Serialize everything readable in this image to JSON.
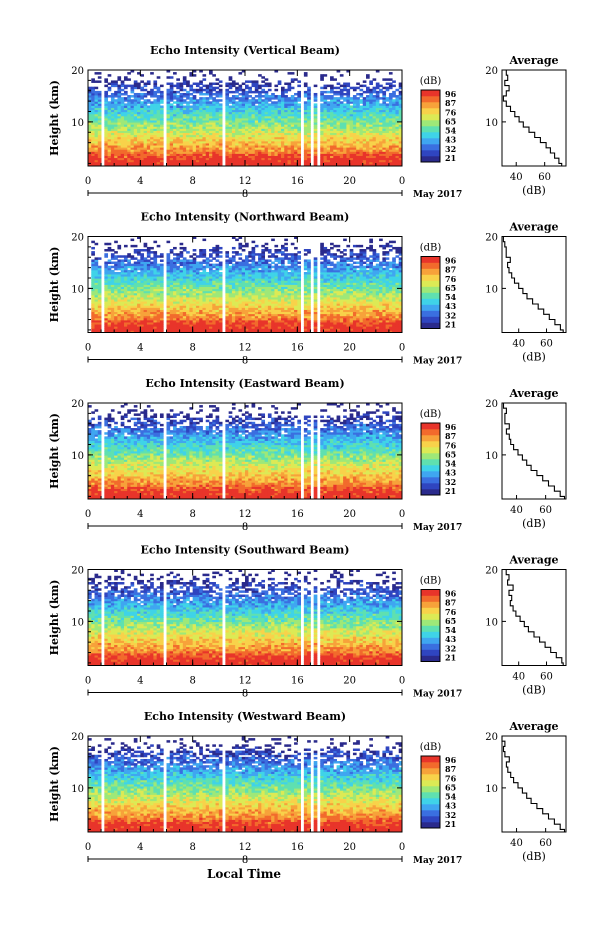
{
  "page": {
    "xaxis_title": "Local Time"
  },
  "colorbar": {
    "unit": "(dB)",
    "ticks": [
      "96",
      "87",
      "76",
      "65",
      "54",
      "43",
      "32",
      "21"
    ],
    "colors": [
      "#2a2a8c",
      "#2f45c0",
      "#3a6fe0",
      "#3fa6f0",
      "#3fd3e8",
      "#5fe0b0",
      "#9ee878",
      "#dcea55",
      "#f8d24a",
      "#f7a23a",
      "#f26a2c",
      "#e8342a"
    ]
  },
  "chart_data": [
    {
      "type": "heatmap",
      "title": "Echo Intensity (Vertical Beam)",
      "ylabel": "Height (km)",
      "x_ticks": [
        "0",
        "4",
        "8",
        "12",
        "16",
        "20",
        "0"
      ],
      "x_day": "8",
      "x_month": "May 2017",
      "y_ticks": [
        "20",
        "10"
      ],
      "xlim_hours": [
        0,
        24
      ],
      "ylim_km": [
        1.5,
        20
      ],
      "gaps_hours": [
        [
          1.0,
          1.3
        ],
        [
          5.8,
          6.1
        ],
        [
          10.2,
          10.5
        ],
        [
          16.2,
          16.5
        ],
        [
          17.1,
          17.3
        ],
        [
          17.6,
          17.8
        ],
        [
          23.4,
          23.6
        ]
      ],
      "colorbar_range_db": [
        21,
        96
      ],
      "average_profile": {
        "title": "Average",
        "xlabel": "(dB)",
        "x_ticks": [
          "40",
          "60"
        ],
        "y_ticks": [
          "20",
          "10"
        ],
        "xlim": [
          30,
          75
        ],
        "ylim": [
          1.5,
          20
        ],
        "heights": [
          1.5,
          2,
          3,
          4,
          5,
          6,
          7,
          8,
          9,
          10,
          11,
          12,
          13,
          14,
          15,
          16,
          17,
          18,
          19,
          20
        ],
        "values": [
          72,
          70,
          67,
          64,
          61,
          57,
          53,
          49,
          45,
          42,
          39,
          36,
          33,
          31,
          33,
          35,
          32,
          34,
          33,
          33
        ]
      }
    },
    {
      "type": "heatmap",
      "title": "Echo Intensity (Northward Beam)",
      "ylabel": "Height (km)",
      "x_ticks": [
        "0",
        "4",
        "8",
        "12",
        "16",
        "20",
        "0"
      ],
      "x_day": "8",
      "x_month": "May 2017",
      "y_ticks": [
        "20",
        "10"
      ],
      "xlim_hours": [
        0,
        24
      ],
      "ylim_km": [
        1.5,
        20
      ],
      "gaps_hours": [
        [
          0.0,
          0.2
        ],
        [
          1.0,
          1.3
        ],
        [
          5.8,
          6.1
        ],
        [
          10.2,
          10.5
        ],
        [
          16.2,
          16.5
        ],
        [
          17.1,
          17.3
        ],
        [
          17.6,
          17.8
        ],
        [
          23.4,
          23.6
        ]
      ],
      "colorbar_range_db": [
        21,
        96
      ],
      "average_profile": {
        "title": "Average",
        "xlabel": "(dB)",
        "x_ticks": [
          "40",
          "60"
        ],
        "y_ticks": [
          "20",
          "10"
        ],
        "xlim": [
          28,
          74
        ],
        "ylim": [
          1.5,
          20
        ],
        "heights": [
          1.5,
          2,
          3,
          4,
          5,
          6,
          7,
          8,
          9,
          10,
          11,
          12,
          13,
          14,
          15,
          16,
          17,
          18,
          19,
          20
        ],
        "values": [
          72,
          70,
          66,
          62,
          58,
          54,
          50,
          46,
          43,
          40,
          37,
          35,
          33,
          32,
          34,
          31,
          31,
          30,
          29,
          30
        ]
      }
    },
    {
      "type": "heatmap",
      "title": "Echo Intensity (Eastward Beam)",
      "ylabel": "Height (km)",
      "x_ticks": [
        "0",
        "4",
        "8",
        "12",
        "16",
        "20",
        "0"
      ],
      "x_day": "8",
      "x_month": "May 2017",
      "y_ticks": [
        "20",
        "10"
      ],
      "xlim_hours": [
        0,
        24
      ],
      "ylim_km": [
        1.5,
        20
      ],
      "gaps_hours": [
        [
          1.0,
          1.3
        ],
        [
          5.8,
          6.1
        ],
        [
          10.2,
          10.5
        ],
        [
          16.3,
          16.5
        ],
        [
          17.1,
          17.3
        ],
        [
          17.6,
          17.8
        ],
        [
          23.4,
          23.6
        ]
      ],
      "colorbar_range_db": [
        21,
        96
      ],
      "average_profile": {
        "title": "Average",
        "xlabel": "(dB)",
        "x_ticks": [
          "40",
          "60"
        ],
        "y_ticks": [
          "20",
          "10"
        ],
        "xlim": [
          30,
          74
        ],
        "ylim": [
          1.5,
          20
        ],
        "heights": [
          1.5,
          2,
          3,
          4,
          5,
          6,
          7,
          8,
          9,
          10,
          11,
          12,
          13,
          14,
          15,
          16,
          17,
          18,
          19,
          20
        ],
        "values": [
          73,
          70,
          66,
          62,
          58,
          54,
          50,
          47,
          44,
          41,
          38,
          36,
          35,
          33,
          35,
          32,
          32,
          33,
          31,
          32
        ]
      }
    },
    {
      "type": "heatmap",
      "title": "Echo Intensity (Southward Beam)",
      "ylabel": "Height (km)",
      "x_ticks": [
        "0",
        "4",
        "8",
        "12",
        "16",
        "20",
        "0"
      ],
      "x_day": "8",
      "x_month": "May 2017",
      "y_ticks": [
        "20",
        "10"
      ],
      "xlim_hours": [
        0,
        24
      ],
      "ylim_km": [
        1.5,
        20
      ],
      "gaps_hours": [
        [
          1.0,
          1.3
        ],
        [
          5.8,
          6.1
        ],
        [
          10.2,
          10.5
        ],
        [
          16.2,
          16.5
        ],
        [
          17.1,
          17.3
        ],
        [
          17.6,
          17.8
        ],
        [
          23.4,
          23.6
        ]
      ],
      "colorbar_range_db": [
        21,
        96
      ],
      "average_profile": {
        "title": "Average",
        "xlabel": "(dB)",
        "x_ticks": [
          "40",
          "60"
        ],
        "y_ticks": [
          "20",
          "10"
        ],
        "xlim": [
          28,
          74
        ],
        "ylim": [
          1.5,
          20
        ],
        "heights": [
          1.5,
          2,
          3,
          4,
          5,
          6,
          7,
          8,
          9,
          10,
          11,
          12,
          13,
          14,
          15,
          16,
          17,
          18,
          19,
          20
        ],
        "values": [
          72,
          71,
          67,
          63,
          59,
          55,
          51,
          47,
          44,
          41,
          38,
          36,
          34,
          35,
          33,
          36,
          32,
          33,
          31,
          31
        ]
      }
    },
    {
      "type": "heatmap",
      "title": "Echo Intensity (Westward Beam)",
      "ylabel": "Height (km)",
      "x_ticks": [
        "0",
        "4",
        "8",
        "12",
        "16",
        "20",
        "0"
      ],
      "x_day": "8",
      "x_month": "May 2017",
      "y_ticks": [
        "20",
        "10"
      ],
      "xlim_hours": [
        0,
        24
      ],
      "ylim_km": [
        1.5,
        20
      ],
      "gaps_hours": [
        [
          1.0,
          1.3
        ],
        [
          5.8,
          6.1
        ],
        [
          10.2,
          10.5
        ],
        [
          16.2,
          16.5
        ],
        [
          17.1,
          17.3
        ],
        [
          17.6,
          17.8
        ],
        [
          23.4,
          23.6
        ]
      ],
      "colorbar_range_db": [
        21,
        96
      ],
      "average_profile": {
        "title": "Average",
        "xlabel": "(dB)",
        "x_ticks": [
          "40",
          "60"
        ],
        "y_ticks": [
          "20",
          "10"
        ],
        "xlim": [
          30,
          74
        ],
        "ylim": [
          1.5,
          20
        ],
        "heights": [
          1.5,
          2,
          3,
          4,
          5,
          6,
          7,
          8,
          9,
          10,
          11,
          12,
          13,
          14,
          15,
          16,
          17,
          18,
          19,
          20
        ],
        "values": [
          73,
          70,
          66,
          62,
          58,
          54,
          50,
          47,
          44,
          41,
          38,
          36,
          34,
          33,
          35,
          32,
          31,
          32,
          30,
          31
        ]
      }
    }
  ]
}
